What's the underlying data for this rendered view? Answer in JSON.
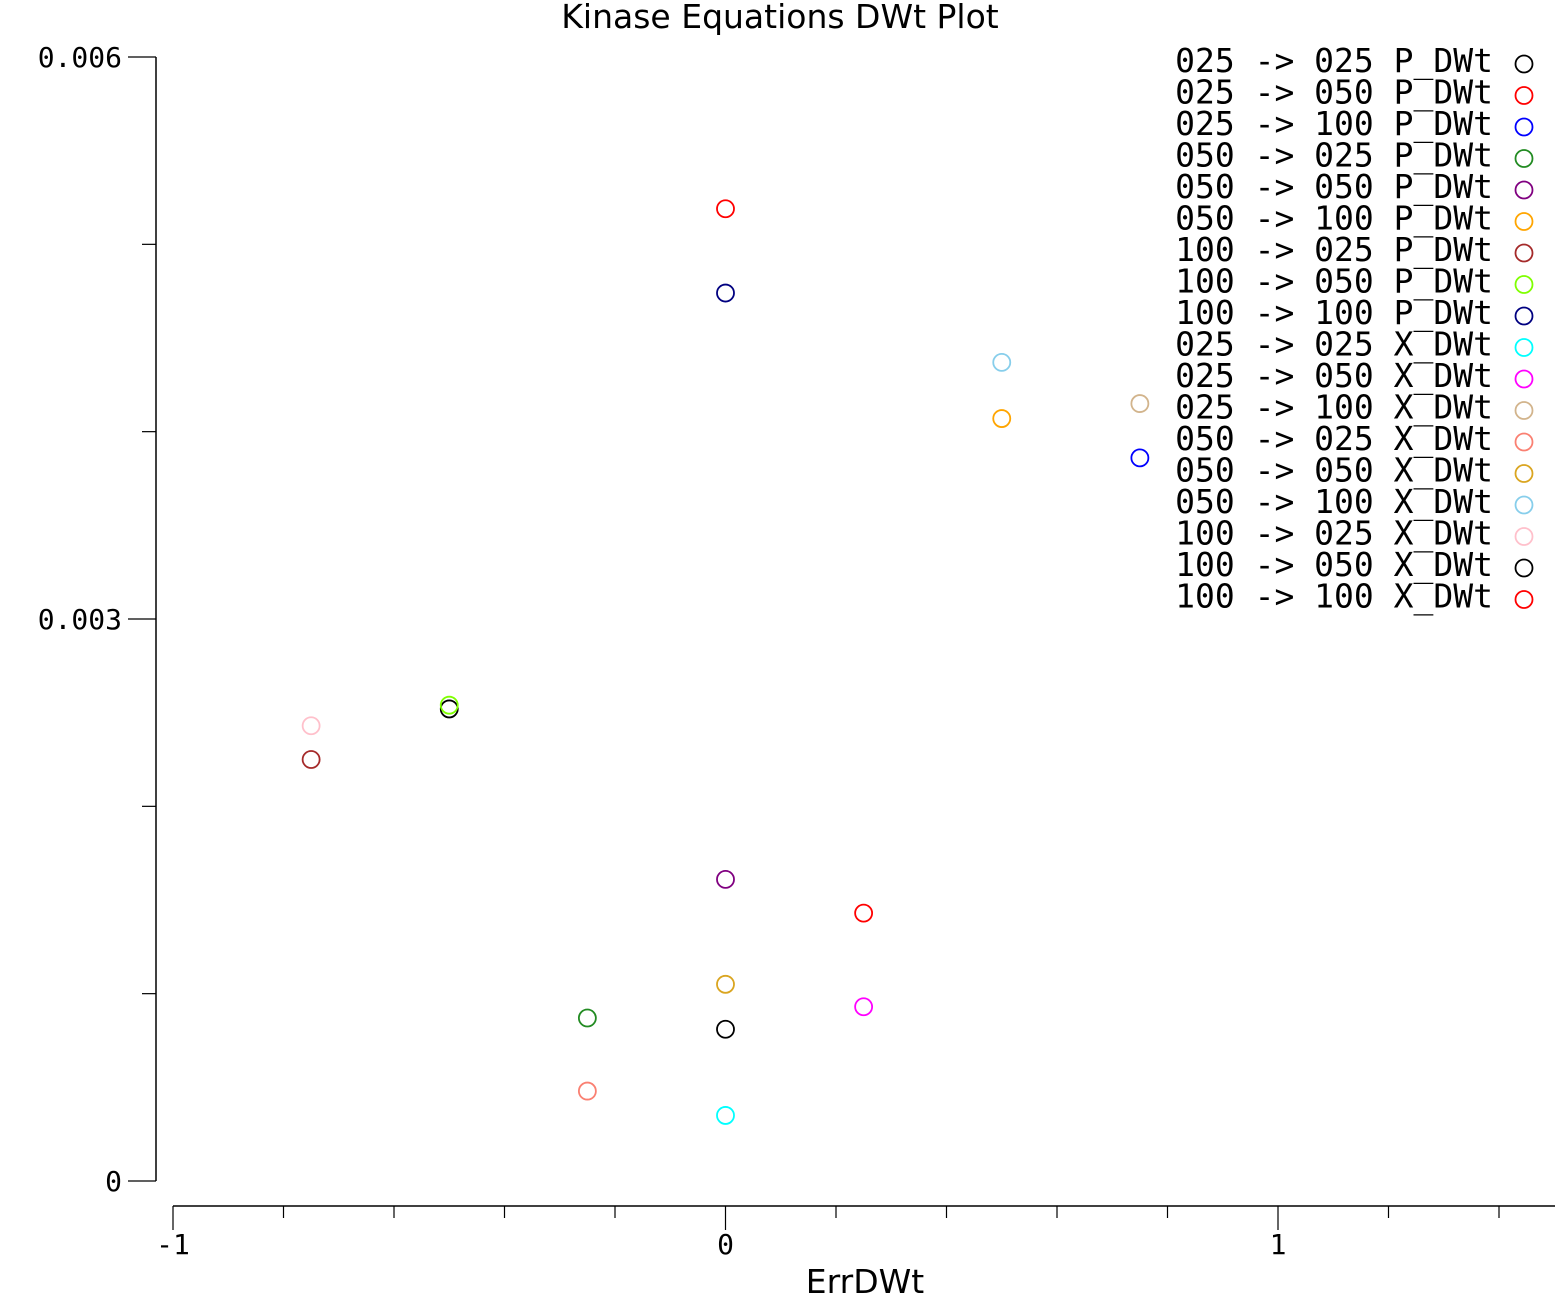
{
  "chart_data": {
    "type": "scatter",
    "title": "Kinase Equations DWt Plot",
    "xlabel": "ErrDWt",
    "ylabel": "",
    "xlim": [
      -1,
      1.5
    ],
    "ylim": [
      0,
      0.006
    ],
    "x_major_ticks": [
      -1,
      0,
      1
    ],
    "x_minor_step": 0.2,
    "y_major_ticks": [
      0,
      0.003,
      0.006
    ],
    "y_minor_step": 0.001,
    "x_tick_labels": [
      "-1",
      "0",
      "1"
    ],
    "y_tick_labels": [
      "0",
      "0.003",
      "0.006"
    ],
    "grid": false,
    "legend_position": "top-right",
    "marker": "open-circle",
    "series": [
      {
        "name": "025 -> 025 P_DWt",
        "color": "#000000",
        "points": [
          [
            -0.5,
            0.00252
          ]
        ]
      },
      {
        "name": "025 -> 050 P_DWt",
        "color": "#ff0000",
        "points": [
          [
            0,
            0.00519
          ]
        ]
      },
      {
        "name": "025 -> 100 P_DWt",
        "color": "#0000ff",
        "points": [
          [
            0.75,
            0.00386
          ]
        ]
      },
      {
        "name": "050 -> 025 P_DWt",
        "color": "#228b22",
        "points": [
          [
            -0.25,
            0.00087
          ]
        ]
      },
      {
        "name": "050 -> 050 P_DWt",
        "color": "#800080",
        "points": [
          [
            0,
            0.00161
          ]
        ]
      },
      {
        "name": "050 -> 100 P_DWt",
        "color": "#ffa500",
        "points": [
          [
            0.5,
            0.00407
          ]
        ]
      },
      {
        "name": "100 -> 025 P_DWt",
        "color": "#a52a2a",
        "points": [
          [
            -0.75,
            0.00225
          ]
        ]
      },
      {
        "name": "100 -> 050 P_DWt",
        "color": "#7fff00",
        "points": [
          [
            -0.5,
            0.00254
          ]
        ]
      },
      {
        "name": "100 -> 100 P_DWt",
        "color": "#000080",
        "points": [
          [
            0,
            0.00474
          ]
        ]
      },
      {
        "name": "025 -> 025 X_DWt",
        "color": "#00ffff",
        "points": [
          [
            0,
            0.00035
          ]
        ]
      },
      {
        "name": "025 -> 050 X_DWt",
        "color": "#ff00ff",
        "points": [
          [
            0.25,
            0.00093
          ]
        ]
      },
      {
        "name": "025 -> 100 X_DWt",
        "color": "#d2b48c",
        "points": [
          [
            0.75,
            0.00415
          ]
        ]
      },
      {
        "name": "050 -> 025 X_DWt",
        "color": "#fa8072",
        "points": [
          [
            -0.25,
            0.00048
          ]
        ]
      },
      {
        "name": "050 -> 050 X_DWt",
        "color": "#daa520",
        "points": [
          [
            0,
            0.00105
          ]
        ]
      },
      {
        "name": "050 -> 100 X_DWt",
        "color": "#87ceeb",
        "points": [
          [
            0.5,
            0.00437
          ]
        ]
      },
      {
        "name": "100 -> 025 X_DWt",
        "color": "#ffc0cb",
        "points": [
          [
            -0.75,
            0.00243
          ]
        ]
      },
      {
        "name": "100 -> 050 X_DWt",
        "color": "#000000",
        "points": [
          [
            0,
            0.00081
          ]
        ]
      },
      {
        "name": "100 -> 100 X_DWt",
        "color": "#ff0000",
        "points": [
          [
            0.25,
            0.00143
          ]
        ]
      }
    ]
  }
}
